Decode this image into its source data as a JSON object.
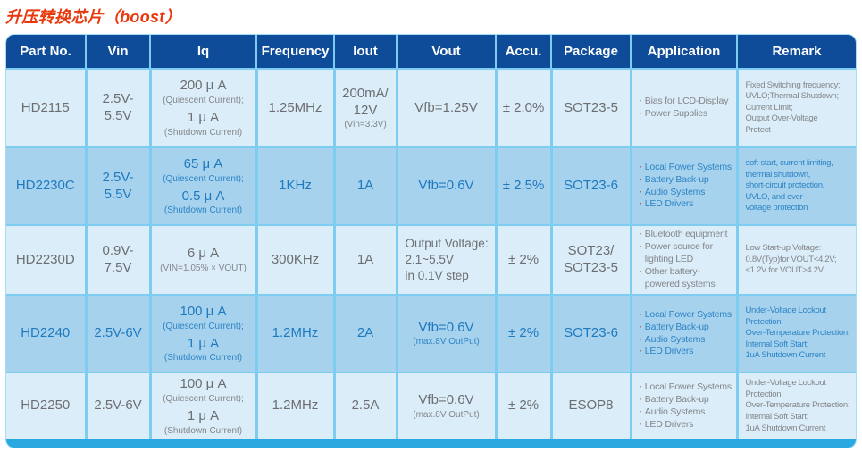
{
  "page": {
    "title": "升压转换芯片（boost）"
  },
  "colors": {
    "title_red": "#e8380d",
    "header_bg": "#0e4c99",
    "light_row_bg": "#daedf8",
    "highlight_row_bg": "#a6d2ed",
    "grid_line": "#7ecdf0",
    "footer_bar": "#2aa9e0",
    "gray_text": "#6d6e71",
    "blue_text": "#1f79bf",
    "bullet_red": "#c1272d"
  },
  "table": {
    "columns": [
      {
        "key": "part-no",
        "label": "Part No."
      },
      {
        "key": "vin",
        "label": "Vin"
      },
      {
        "key": "iq",
        "label": "Iq"
      },
      {
        "key": "frequency",
        "label": "Frequency"
      },
      {
        "key": "iout",
        "label": "Iout"
      },
      {
        "key": "vout",
        "label": "Vout"
      },
      {
        "key": "accu",
        "label": "Accu."
      },
      {
        "key": "package",
        "label": "Package"
      },
      {
        "key": "application",
        "label": "Application"
      },
      {
        "key": "remark",
        "label": "Remark"
      }
    ],
    "rows": [
      {
        "id": "HD2115",
        "highlight": false,
        "cells": [
          {
            "lines": [
              {
                "t": "HD2115",
                "s": "lg"
              }
            ]
          },
          {
            "lines": [
              {
                "t": "2.5V-5.5V",
                "s": "lg"
              }
            ]
          },
          {
            "lines": [
              {
                "t": "200 μ A",
                "s": "lg"
              },
              {
                "t": "(Quiescent Current);",
                "s": "sm"
              },
              {
                "t": "1 μ A",
                "s": "lg"
              },
              {
                "t": "(Shutdown Current)",
                "s": "sm"
              }
            ]
          },
          {
            "lines": [
              {
                "t": "1.25MHz",
                "s": "lg"
              }
            ]
          },
          {
            "lines": [
              {
                "t": "200mA/",
                "s": "lg"
              },
              {
                "t": "12V",
                "s": "lg"
              },
              {
                "t": "(Vin=3.3V)",
                "s": "sm"
              }
            ]
          },
          {
            "lines": [
              {
                "t": "Vfb=1.25V",
                "s": "lg"
              }
            ]
          },
          {
            "lines": [
              {
                "t": "± 2.0%",
                "s": "lg"
              }
            ]
          },
          {
            "lines": [
              {
                "t": "SOT23-5",
                "s": "lg"
              }
            ]
          },
          {
            "align": "left",
            "lines": [
              {
                "t": "Bias for LCD-Display",
                "s": "li"
              },
              {
                "t": "Power Supplies",
                "s": "li"
              }
            ]
          },
          {
            "align": "left",
            "lines": [
              {
                "t": "Fixed Switching frequency;",
                "s": "rm"
              },
              {
                "t": "UVLO;Thermal Shutdown;",
                "s": "rm"
              },
              {
                "t": "Current Limit;",
                "s": "rm"
              },
              {
                "t": "Output Over-Voltage",
                "s": "rm"
              },
              {
                "t": "Protect",
                "s": "rm"
              }
            ]
          }
        ]
      },
      {
        "id": "HD2230C",
        "highlight": true,
        "cells": [
          {
            "lines": [
              {
                "t": "HD2230C",
                "s": "lg"
              }
            ]
          },
          {
            "lines": [
              {
                "t": "2.5V-5.5V",
                "s": "lg"
              }
            ]
          },
          {
            "lines": [
              {
                "t": "65 μ A",
                "s": "lg"
              },
              {
                "t": "(Quiescent Current);",
                "s": "sm"
              },
              {
                "t": "0.5 μ A",
                "s": "lg"
              },
              {
                "t": "(Shutdown Current)",
                "s": "sm"
              }
            ]
          },
          {
            "lines": [
              {
                "t": "1KHz",
                "s": "lg"
              }
            ]
          },
          {
            "lines": [
              {
                "t": "1A",
                "s": "lg"
              }
            ]
          },
          {
            "lines": [
              {
                "t": "Vfb=0.6V",
                "s": "lg"
              }
            ]
          },
          {
            "lines": [
              {
                "t": "± 2.5%",
                "s": "lg"
              }
            ]
          },
          {
            "lines": [
              {
                "t": "SOT23-6",
                "s": "lg"
              }
            ]
          },
          {
            "align": "left",
            "lines": [
              {
                "t": "Local Power Systems",
                "s": "li"
              },
              {
                "t": "Battery Back-up",
                "s": "li"
              },
              {
                "t": "Audio Systems",
                "s": "li"
              },
              {
                "t": "LED Drivers",
                "s": "li"
              }
            ]
          },
          {
            "align": "left",
            "lines": [
              {
                "t": "soft-start, current limiting,",
                "s": "rm"
              },
              {
                "t": "thermal shutdown,",
                "s": "rm"
              },
              {
                "t": "short-circuit protection,",
                "s": "rm"
              },
              {
                "t": "UVLO, and over-",
                "s": "rm"
              },
              {
                "t": "voltage protection",
                "s": "rm"
              }
            ]
          }
        ]
      },
      {
        "id": "HD2230D",
        "highlight": false,
        "cells": [
          {
            "lines": [
              {
                "t": "HD2230D",
                "s": "lg"
              }
            ]
          },
          {
            "lines": [
              {
                "t": "0.9V-7.5V",
                "s": "lg"
              }
            ]
          },
          {
            "lines": [
              {
                "t": "6 μ A",
                "s": "lg"
              },
              {
                "t": "(VIN=1.05% × VOUT)",
                "s": "sm"
              }
            ]
          },
          {
            "lines": [
              {
                "t": "300KHz",
                "s": "lg"
              }
            ]
          },
          {
            "lines": [
              {
                "t": "1A",
                "s": "lg"
              }
            ]
          },
          {
            "align": "left",
            "lines": [
              {
                "t": "Output Voltage:",
                "s": "md"
              },
              {
                "t": "2.1~5.5V",
                "s": "md"
              },
              {
                "t": "in 0.1V step",
                "s": "md"
              }
            ]
          },
          {
            "lines": [
              {
                "t": "± 2%",
                "s": "lg"
              }
            ]
          },
          {
            "lines": [
              {
                "t": "SOT23/",
                "s": "lg"
              },
              {
                "t": "SOT23-5",
                "s": "lg"
              }
            ]
          },
          {
            "align": "left",
            "lines": [
              {
                "t": "Bluetooth equipment",
                "s": "li"
              },
              {
                "t": "Power source for lighting LED",
                "s": "li"
              },
              {
                "t": "Other battery-powered systems",
                "s": "li"
              }
            ]
          },
          {
            "align": "left",
            "lines": [
              {
                "t": "Low Start-up Voltage:",
                "s": "rm"
              },
              {
                "t": "0.8V(Typ)for VOUT<4.2V;",
                "s": "rm"
              },
              {
                "t": "<1.2V for VOUT>4.2V",
                "s": "rm"
              }
            ]
          }
        ]
      },
      {
        "id": "HD2240",
        "highlight": true,
        "cells": [
          {
            "lines": [
              {
                "t": "HD2240",
                "s": "lg"
              }
            ]
          },
          {
            "lines": [
              {
                "t": "2.5V-6V",
                "s": "lg"
              }
            ]
          },
          {
            "lines": [
              {
                "t": "100 μ A",
                "s": "lg"
              },
              {
                "t": "(Quiescent Current);",
                "s": "sm"
              },
              {
                "t": "1 μ A",
                "s": "lg"
              },
              {
                "t": "(Shutdown Current)",
                "s": "sm"
              }
            ]
          },
          {
            "lines": [
              {
                "t": "1.2MHz",
                "s": "lg"
              }
            ]
          },
          {
            "lines": [
              {
                "t": "2A",
                "s": "lg"
              }
            ]
          },
          {
            "lines": [
              {
                "t": "Vfb=0.6V",
                "s": "lg"
              },
              {
                "t": "(max.8V OutPut)",
                "s": "sm"
              }
            ]
          },
          {
            "lines": [
              {
                "t": "± 2%",
                "s": "lg"
              }
            ]
          },
          {
            "lines": [
              {
                "t": "SOT23-6",
                "s": "lg"
              }
            ]
          },
          {
            "align": "left",
            "lines": [
              {
                "t": "Local Power Systems",
                "s": "li"
              },
              {
                "t": "Battery Back-up",
                "s": "li"
              },
              {
                "t": "Audio Systems",
                "s": "li"
              },
              {
                "t": "LED Drivers",
                "s": "li"
              }
            ]
          },
          {
            "align": "left",
            "lines": [
              {
                "t": "Under-Voltage Lockout Protection;",
                "s": "rm"
              },
              {
                "t": "Over-Temperature Protection;",
                "s": "rm"
              },
              {
                "t": "Internal Soft Start;",
                "s": "rm"
              },
              {
                "t": "1uA Shutdown Current",
                "s": "rm"
              }
            ]
          }
        ]
      },
      {
        "id": "HD2250",
        "highlight": false,
        "cells": [
          {
            "lines": [
              {
                "t": "HD2250",
                "s": "lg"
              }
            ]
          },
          {
            "lines": [
              {
                "t": "2.5V-6V",
                "s": "lg"
              }
            ]
          },
          {
            "lines": [
              {
                "t": "100 μ A",
                "s": "lg"
              },
              {
                "t": "(Quiescent Current);",
                "s": "sm"
              },
              {
                "t": "1 μ A",
                "s": "lg"
              },
              {
                "t": "(Shutdown Current)",
                "s": "sm"
              }
            ]
          },
          {
            "lines": [
              {
                "t": "1.2MHz",
                "s": "lg"
              }
            ]
          },
          {
            "lines": [
              {
                "t": "2.5A",
                "s": "lg"
              }
            ]
          },
          {
            "lines": [
              {
                "t": "Vfb=0.6V",
                "s": "lg"
              },
              {
                "t": "(max.8V OutPut)",
                "s": "sm"
              }
            ]
          },
          {
            "lines": [
              {
                "t": "± 2%",
                "s": "lg"
              }
            ]
          },
          {
            "lines": [
              {
                "t": "ESOP8",
                "s": "lg"
              }
            ]
          },
          {
            "align": "left",
            "lines": [
              {
                "t": "Local Power Systems",
                "s": "li"
              },
              {
                "t": "Battery Back-up",
                "s": "li"
              },
              {
                "t": "Audio Systems",
                "s": "li"
              },
              {
                "t": "LED Drivers",
                "s": "li"
              }
            ]
          },
          {
            "align": "left",
            "lines": [
              {
                "t": "Under-Voltage Lockout Protection;",
                "s": "rm"
              },
              {
                "t": "Over-Temperature Protection;",
                "s": "rm"
              },
              {
                "t": "Internal Soft Start;",
                "s": "rm"
              },
              {
                "t": "1uA Shutdown Current",
                "s": "rm"
              }
            ]
          }
        ]
      }
    ]
  }
}
